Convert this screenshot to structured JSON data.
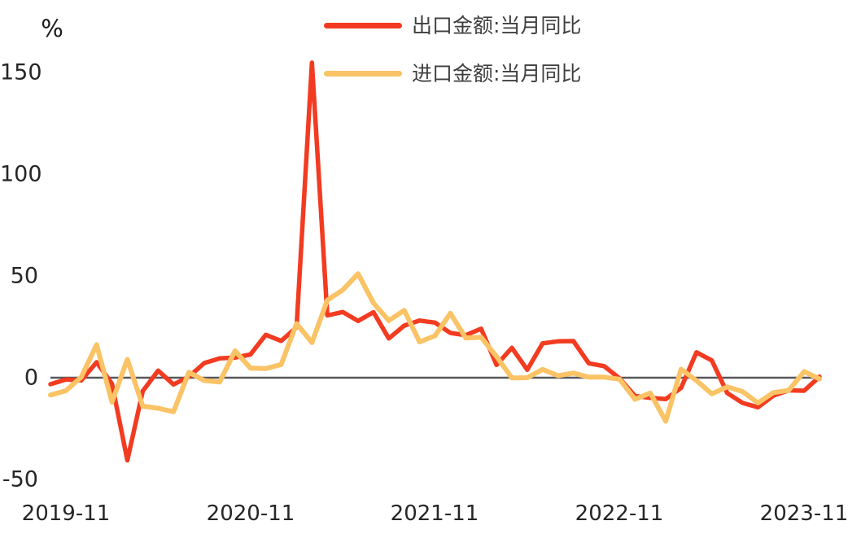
{
  "chart_data": {
    "type": "line",
    "title": "",
    "y_unit": "%",
    "x": [
      "2019-09",
      "2019-10",
      "2019-11",
      "2019-12",
      "2020-01",
      "2020-02",
      "2020-03",
      "2020-04",
      "2020-05",
      "2020-06",
      "2020-07",
      "2020-08",
      "2020-09",
      "2020-10",
      "2020-11",
      "2020-12",
      "2021-01",
      "2021-02",
      "2021-03",
      "2021-04",
      "2021-05",
      "2021-06",
      "2021-07",
      "2021-08",
      "2021-09",
      "2021-10",
      "2021-11",
      "2021-12",
      "2022-01",
      "2022-02",
      "2022-03",
      "2022-04",
      "2022-05",
      "2022-06",
      "2022-07",
      "2022-08",
      "2022-09",
      "2022-10",
      "2022-11",
      "2022-12",
      "2023-01",
      "2023-02",
      "2023-03",
      "2023-04",
      "2023-05",
      "2023-06",
      "2023-07",
      "2023-08",
      "2023-09",
      "2023-10",
      "2023-11"
    ],
    "series": [
      {
        "name": "出口金额:当月同比",
        "color": "#f23b21",
        "values": [
          -3.2,
          -0.9,
          -1.3,
          7.6,
          -3.0,
          -40.6,
          -6.6,
          3.5,
          -3.3,
          0.5,
          7.2,
          9.5,
          9.9,
          11.4,
          21.1,
          18.1,
          24.8,
          154.8,
          30.6,
          32.3,
          27.9,
          32.2,
          19.3,
          25.6,
          28.1,
          27.1,
          22.0,
          20.9,
          24.1,
          6.3,
          14.7,
          3.9,
          16.9,
          17.9,
          18.0,
          7.1,
          5.7,
          -0.3,
          -8.9,
          -9.9,
          -10.5,
          -5.0,
          12.5,
          8.5,
          -7.5,
          -12.4,
          -14.5,
          -8.8,
          -6.2,
          -6.4,
          0.5
        ]
      },
      {
        "name": "进口金额:当月同比",
        "color": "#fac365",
        "values": [
          -8.5,
          -6.4,
          0.3,
          16.2,
          -12.0,
          9.0,
          -14.0,
          -15.0,
          -16.7,
          2.7,
          -1.4,
          -2.1,
          13.2,
          4.7,
          4.5,
          6.5,
          26.6,
          17.3,
          38.1,
          43.1,
          51.1,
          36.7,
          28.1,
          33.1,
          17.6,
          20.6,
          31.7,
          19.5,
          19.9,
          10.4,
          -0.1,
          0.0,
          4.1,
          1.0,
          2.3,
          0.3,
          0.3,
          -0.7,
          -10.6,
          -7.5,
          -21.4,
          4.2,
          -1.4,
          -7.9,
          -4.5,
          -6.8,
          -12.4,
          -7.3,
          -6.2,
          3.0,
          -0.6
        ]
      }
    ],
    "x_tick_labels": [
      "2019-11",
      "2020-11",
      "2021-11",
      "2022-11",
      "2023-11"
    ],
    "y_ticks": [
      150,
      100,
      50,
      0,
      -50
    ],
    "ylim": [
      -58,
      156
    ],
    "grid": false,
    "zero_line": true,
    "zero_line_color": "#58585a",
    "legend_position": "top-center"
  }
}
